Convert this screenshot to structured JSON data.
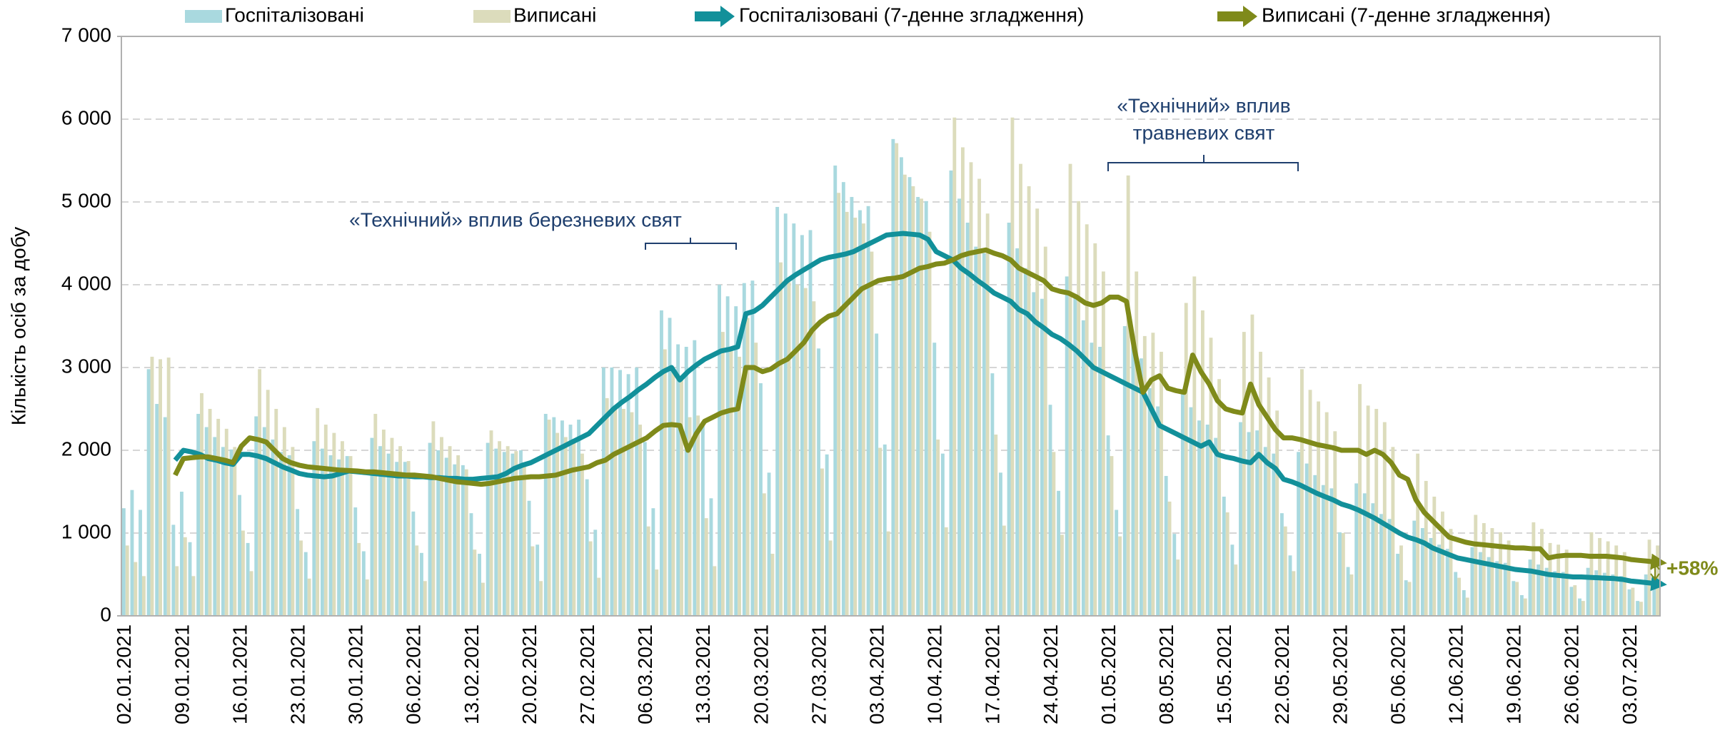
{
  "chart_data": {
    "type": "combo",
    "y_label": "Кількість осіб за добу",
    "ylim": [
      0,
      7000
    ],
    "yticks": [
      0,
      {
        "value": 1000,
        "label": "1 000"
      },
      {
        "value": 2000,
        "label": "2 000"
      },
      {
        "value": 3000,
        "label": "3 000"
      },
      {
        "value": 4000,
        "label": "4 000"
      },
      {
        "value": 5000,
        "label": "5 000"
      },
      {
        "value": 6000,
        "label": "6 000"
      },
      {
        "value": 7000,
        "label": "7 000"
      }
    ],
    "grid": true,
    "legend": "top",
    "annotations": [
      {
        "text": "«Технічний» вплив березневих свят"
      },
      {
        "text": [
          "«Технічний» вплив",
          "травневих свят"
        ]
      },
      {
        "text": "+58%"
      }
    ],
    "categories": [
      "02.01.2021",
      null,
      null,
      null,
      null,
      null,
      null,
      "09.01.2021",
      null,
      null,
      null,
      null,
      null,
      null,
      "16.01.2021",
      null,
      null,
      null,
      null,
      null,
      null,
      "23.01.2021",
      null,
      null,
      null,
      null,
      null,
      null,
      "30.01.2021",
      null,
      null,
      null,
      null,
      null,
      null,
      "06.02.2021",
      null,
      null,
      null,
      null,
      null,
      null,
      "13.02.2021",
      null,
      null,
      null,
      null,
      null,
      null,
      "20.02.2021",
      null,
      null,
      null,
      null,
      null,
      null,
      "27.02.2021",
      null,
      null,
      null,
      null,
      null,
      null,
      "06.03.2021",
      null,
      null,
      null,
      null,
      null,
      null,
      "13.03.2021",
      null,
      null,
      null,
      null,
      null,
      null,
      "20.03.2021",
      null,
      null,
      null,
      null,
      null,
      null,
      "27.03.2021",
      null,
      null,
      null,
      null,
      null,
      null,
      "03.04.2021",
      null,
      null,
      null,
      null,
      null,
      null,
      "10.04.2021",
      null,
      null,
      null,
      null,
      null,
      null,
      "17.04.2021",
      null,
      null,
      null,
      null,
      null,
      null,
      "24.04.2021",
      null,
      null,
      null,
      null,
      null,
      null,
      "01.05.2021",
      null,
      null,
      null,
      null,
      null,
      null,
      "08.05.2021",
      null,
      null,
      null,
      null,
      null,
      null,
      "15.05.2021",
      null,
      null,
      null,
      null,
      null,
      null,
      "22.05.2021",
      null,
      null,
      null,
      null,
      null,
      null,
      "29.05.2021",
      null,
      null,
      null,
      null,
      null,
      null,
      "05.06.2021",
      null,
      null,
      null,
      null,
      null,
      null,
      "12.06.2021",
      null,
      null,
      null,
      null,
      null,
      null,
      "19.06.2021",
      null,
      null,
      null,
      null,
      null,
      null,
      "26.06.2021",
      null,
      null,
      null,
      null,
      null,
      null,
      "03.07.2021",
      null,
      null,
      null
    ],
    "series": [
      {
        "name": "Госпіталізовані",
        "type": "bar",
        "color": "#a9d9df",
        "values": [
          1300,
          1520,
          1280,
          2980,
          2560,
          2400,
          1100,
          1500,
          890,
          2440,
          2280,
          2160,
          2040,
          2010,
          1460,
          880,
          2410,
          2280,
          2130,
          1980,
          1940,
          1290,
          770,
          2110,
          2020,
          1940,
          1890,
          1930,
          1310,
          780,
          2150,
          2050,
          1960,
          1860,
          1860,
          1260,
          760,
          2090,
          2000,
          1910,
          1830,
          1820,
          1240,
          750,
          2090,
          2020,
          1980,
          1960,
          2000,
          1390,
          860,
          2440,
          2400,
          2360,
          2310,
          2370,
          1650,
          1040,
          3000,
          3000,
          2970,
          2920,
          3000,
          2100,
          1300,
          3690,
          3600,
          3280,
          3250,
          3330,
          2330,
          1420,
          4000,
          3860,
          3740,
          4020,
          4050,
          2810,
          1730,
          4940,
          4860,
          4740,
          4600,
          4660,
          3230,
          1950,
          5440,
          5240,
          5060,
          4900,
          4950,
          3410,
          2070,
          5760,
          5540,
          5300,
          5060,
          5010,
          3300,
          1960,
          5380,
          5040,
          4750,
          4460,
          4380,
          2930,
          1730,
          4750,
          4440,
          4200,
          3910,
          3830,
          2550,
          1510,
          4100,
          3840,
          3570,
          3300,
          3250,
          2180,
          1280,
          3500,
          3300,
          3110,
          2750,
          2530,
          1690,
          990,
          2690,
          2520,
          2360,
          2310,
          2150,
          1440,
          860,
          2340,
          2220,
          2240,
          2040,
          1960,
          1240,
          730,
          1980,
          1840,
          1700,
          1580,
          1540,
          1010,
          590,
          1600,
          1480,
          1360,
          1230,
          1170,
          750,
          430,
          1150,
          1060,
          940,
          860,
          810,
          530,
          310,
          830,
          770,
          710,
          660,
          640,
          420,
          250,
          680,
          620,
          580,
          540,
          530,
          350,
          210,
          580,
          550,
          520,
          500,
          480,
          320,
          180,
          500,
          470
        ]
      },
      {
        "name": "Виписані",
        "type": "bar",
        "color": "#dcdcbc",
        "values": [
          850,
          650,
          480,
          3130,
          3100,
          3120,
          600,
          950,
          480,
          2690,
          2500,
          2380,
          2260,
          2040,
          1030,
          540,
          2980,
          2730,
          2500,
          2280,
          2040,
          910,
          450,
          2510,
          2310,
          2210,
          2110,
          1930,
          880,
          440,
          2440,
          2250,
          2150,
          2050,
          1870,
          850,
          420,
          2350,
          2160,
          2050,
          1940,
          1770,
          800,
          400,
          2240,
          2110,
          2050,
          1990,
          1840,
          840,
          420,
          2370,
          2210,
          2160,
          2110,
          1960,
          900,
          460,
          2630,
          2540,
          2500,
          2460,
          2310,
          1080,
          560,
          3220,
          3000,
          2880,
          2400,
          2420,
          1180,
          600,
          3430,
          3220,
          3130,
          3600,
          3300,
          1480,
          750,
          4270,
          4030,
          4000,
          3960,
          3800,
          1780,
          910,
          5110,
          4880,
          4810,
          4740,
          4400,
          2030,
          1020,
          5710,
          5330,
          5190,
          5040,
          4640,
          2130,
          1070,
          6020,
          5660,
          5480,
          5280,
          4860,
          2190,
          1090,
          6020,
          5460,
          5190,
          4920,
          4460,
          1980,
          980,
          5460,
          5010,
          4730,
          4500,
          4160,
          1930,
          960,
          5320,
          4160,
          3380,
          3420,
          3190,
          1380,
          680,
          3780,
          4100,
          3690,
          3360,
          2860,
          1250,
          620,
          3430,
          3640,
          3190,
          2880,
          2480,
          1080,
          540,
          2980,
          2730,
          2590,
          2460,
          2230,
          1000,
          500,
          2800,
          2540,
          2500,
          2340,
          2040,
          850,
          410,
          1960,
          1630,
          1440,
          1260,
          1050,
          460,
          220,
          1220,
          1120,
          1060,
          1010,
          910,
          410,
          210,
          1130,
          1050,
          880,
          860,
          800,
          370,
          180,
          1010,
          940,
          900,
          850,
          770,
          340,
          170,
          920,
          850
        ]
      },
      {
        "name": "Госпіталізовані (7-денне згладження)",
        "type": "line",
        "color": "#12909a",
        "values": [
          null,
          null,
          null,
          null,
          null,
          null,
          1880,
          2000,
          1980,
          1950,
          1900,
          1880,
          1850,
          1830,
          1950,
          1950,
          1930,
          1900,
          1850,
          1800,
          1760,
          1720,
          1700,
          1690,
          1680,
          1690,
          1720,
          1750,
          1740,
          1730,
          1720,
          1710,
          1700,
          1690,
          1690,
          1680,
          1680,
          1670,
          1670,
          1660,
          1660,
          1650,
          1650,
          1660,
          1670,
          1680,
          1720,
          1780,
          1820,
          1850,
          1900,
          1950,
          2000,
          2050,
          2100,
          2150,
          2200,
          2300,
          2400,
          2500,
          2580,
          2650,
          2730,
          2800,
          2880,
          2950,
          3000,
          2850,
          2950,
          3030,
          3100,
          3150,
          3200,
          3220,
          3250,
          3650,
          3680,
          3750,
          3850,
          3950,
          4050,
          4120,
          4180,
          4240,
          4300,
          4330,
          4350,
          4370,
          4400,
          4450,
          4500,
          4550,
          4600,
          4610,
          4620,
          4610,
          4600,
          4550,
          4400,
          4350,
          4300,
          4200,
          4130,
          4050,
          3980,
          3900,
          3850,
          3800,
          3700,
          3650,
          3550,
          3480,
          3400,
          3350,
          3280,
          3200,
          3100,
          3000,
          2950,
          2900,
          2850,
          2800,
          2750,
          2700,
          2500,
          2300,
          2250,
          2200,
          2150,
          2100,
          2050,
          2100,
          1950,
          1920,
          1900,
          1870,
          1850,
          1950,
          1850,
          1780,
          1650,
          1620,
          1580,
          1530,
          1480,
          1440,
          1400,
          1350,
          1320,
          1280,
          1230,
          1180,
          1120,
          1060,
          1000,
          950,
          920,
          880,
          820,
          780,
          740,
          700,
          680,
          660,
          640,
          620,
          600,
          580,
          560,
          550,
          540,
          520,
          500,
          490,
          480,
          470,
          470,
          465,
          460,
          455,
          450,
          440,
          420,
          410,
          400,
          390
        ]
      },
      {
        "name": "Виписані (7-денне згладження)",
        "type": "line",
        "color": "#7f8a1a",
        "values": [
          null,
          null,
          null,
          null,
          null,
          null,
          1700,
          1900,
          1910,
          1920,
          1920,
          1900,
          1880,
          1850,
          2050,
          2150,
          2130,
          2100,
          2000,
          1900,
          1850,
          1820,
          1800,
          1790,
          1780,
          1770,
          1760,
          1755,
          1750,
          1740,
          1740,
          1730,
          1720,
          1710,
          1700,
          1700,
          1690,
          1680,
          1660,
          1640,
          1620,
          1610,
          1600,
          1590,
          1600,
          1620,
          1640,
          1660,
          1670,
          1680,
          1680,
          1690,
          1700,
          1730,
          1760,
          1780,
          1800,
          1850,
          1880,
          1950,
          2000,
          2050,
          2100,
          2150,
          2230,
          2300,
          2310,
          2300,
          2000,
          2200,
          2350,
          2400,
          2450,
          2480,
          2500,
          3000,
          3000,
          2950,
          2980,
          3050,
          3100,
          3200,
          3300,
          3450,
          3550,
          3620,
          3650,
          3750,
          3850,
          3950,
          4000,
          4050,
          4070,
          4080,
          4100,
          4150,
          4200,
          4220,
          4250,
          4260,
          4300,
          4350,
          4380,
          4400,
          4420,
          4380,
          4350,
          4300,
          4200,
          4150,
          4100,
          4050,
          3950,
          3920,
          3900,
          3850,
          3780,
          3750,
          3780,
          3850,
          3850,
          3800,
          3200,
          2700,
          2850,
          2900,
          2750,
          2720,
          2700,
          3150,
          2950,
          2800,
          2600,
          2500,
          2470,
          2450,
          2800,
          2550,
          2400,
          2250,
          2150,
          2150,
          2130,
          2100,
          2070,
          2050,
          2030,
          2000,
          2000,
          2000,
          1950,
          2000,
          1950,
          1850,
          1700,
          1650,
          1400,
          1250,
          1150,
          1050,
          950,
          920,
          890,
          870,
          860,
          850,
          840,
          830,
          820,
          820,
          810,
          810,
          700,
          720,
          730,
          730,
          730,
          720,
          720,
          720,
          710,
          700,
          680,
          670,
          660,
          650
        ]
      }
    ]
  }
}
